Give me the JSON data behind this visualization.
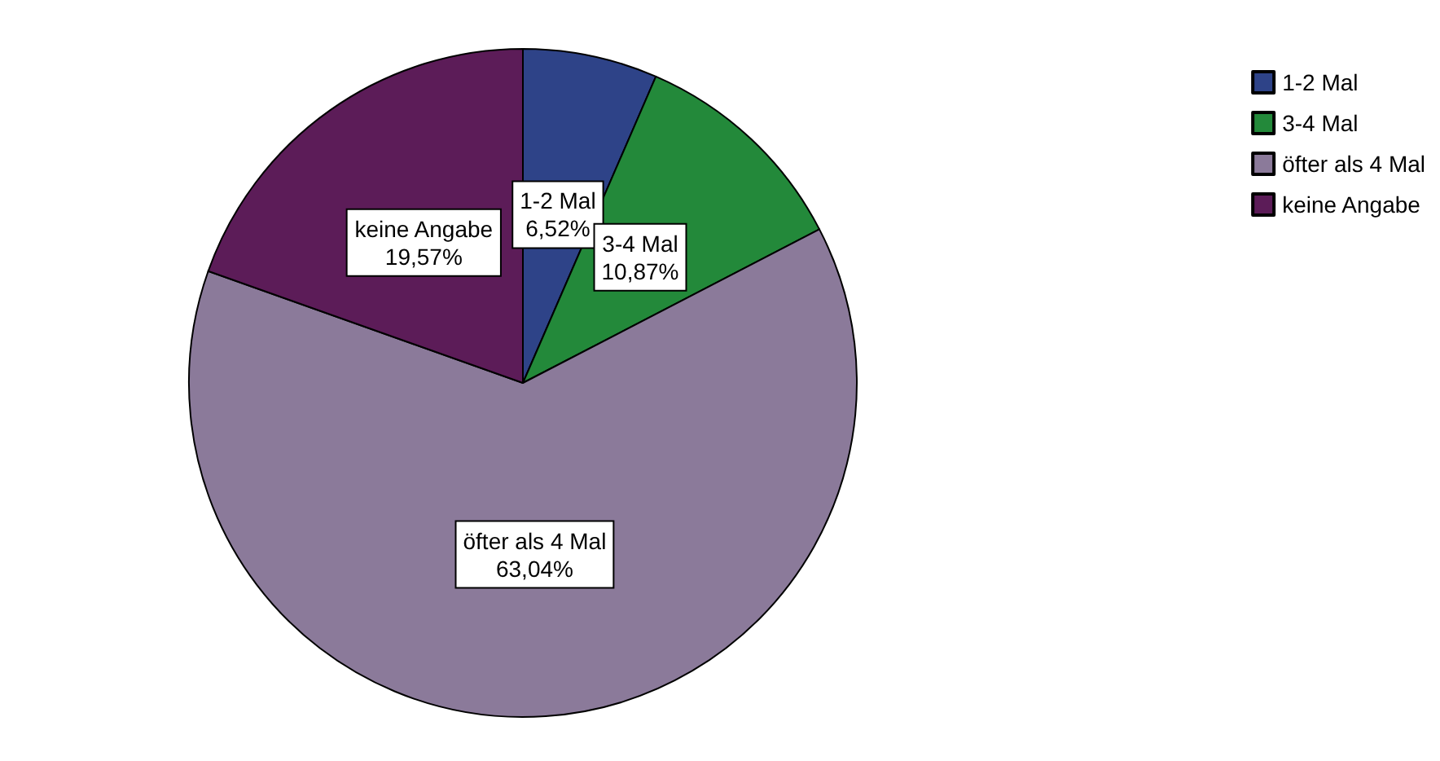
{
  "chart_data": {
    "type": "pie",
    "categories": [
      "1-2 Mal",
      "3-4 Mal",
      "öfter als 4 Mal",
      "keine Angabe"
    ],
    "values": [
      6.52,
      10.87,
      63.04,
      19.57
    ],
    "value_labels": [
      "6,52%",
      "10,87%",
      "63,04%",
      "19,57%"
    ],
    "colors": [
      "#2e4388",
      "#23893a",
      "#8b7a9a",
      "#5c1c58"
    ],
    "legend": "top right"
  }
}
